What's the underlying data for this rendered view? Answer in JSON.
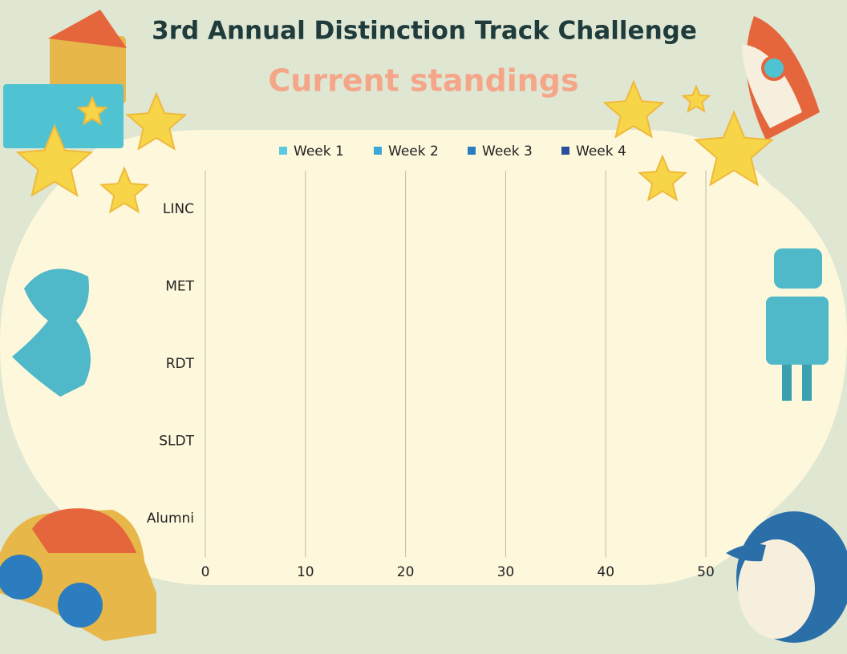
{
  "chart_data": {
    "type": "hbar",
    "title": "3rd Annual Distinction Track Challenge",
    "subtitle": "Current standings",
    "categories": [
      "LINC",
      "MET",
      "RDT",
      "SLDT",
      "Alumni"
    ],
    "series": [
      {
        "name": "Week 1",
        "color": "#5ccbe2",
        "values": [
          0,
          0,
          0,
          0,
          0
        ]
      },
      {
        "name": "Week 2",
        "color": "#3aa9d8",
        "values": [
          0,
          0,
          0,
          0,
          0
        ]
      },
      {
        "name": "Week 3",
        "color": "#2b7dbf",
        "values": [
          0,
          0,
          0,
          0,
          0
        ]
      },
      {
        "name": "Week 4",
        "color": "#2a509c",
        "values": [
          0,
          0,
          0,
          0,
          0
        ]
      }
    ],
    "xlim": [
      0,
      50
    ],
    "xticks": [
      0,
      10,
      20,
      30,
      40,
      50
    ],
    "grid": true,
    "legend": "top"
  }
}
